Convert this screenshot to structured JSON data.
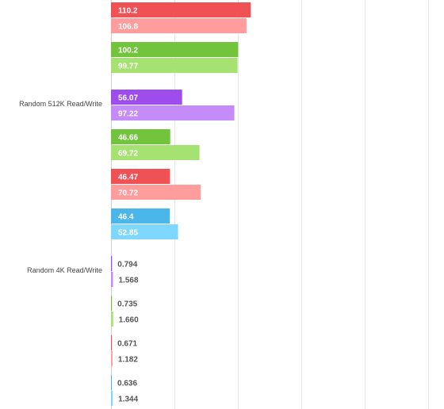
{
  "chart_data": {
    "type": "bar",
    "orientation": "horizontal",
    "grid": true,
    "xlim": [
      0,
      250
    ],
    "gridlines": [
      0,
      50,
      100,
      150,
      200,
      250
    ],
    "groups": [
      {
        "label": "",
        "bars": [
          {
            "value": 110.2,
            "label": "110.2",
            "color": "#ef5155"
          },
          {
            "value": 106.8,
            "label": "106.8",
            "color": "#ff9d9d"
          }
        ]
      },
      {
        "label": "",
        "bars": [
          {
            "value": 100.2,
            "label": "100.2",
            "color": "#72c43c"
          },
          {
            "value": 99.77,
            "label": "99.77",
            "color": "#a6e271"
          }
        ]
      },
      {
        "label": "Random 512K Read/Write",
        "bars": [
          {
            "value": 56.07,
            "label": "56.07",
            "color": "#9f4ced"
          },
          {
            "value": 97.22,
            "label": "97.22",
            "color": "#c58bf9"
          }
        ]
      },
      {
        "label": "",
        "bars": [
          {
            "value": 46.66,
            "label": "46.66",
            "color": "#72c43c"
          },
          {
            "value": 69.72,
            "label": "69.72",
            "color": "#a6e271"
          }
        ]
      },
      {
        "label": "",
        "bars": [
          {
            "value": 46.47,
            "label": "46.47",
            "color": "#ef5155"
          },
          {
            "value": 70.72,
            "label": "70.72",
            "color": "#ff9d9d"
          }
        ]
      },
      {
        "label": "",
        "bars": [
          {
            "value": 46.4,
            "label": "46.4",
            "color": "#4ab6ea"
          },
          {
            "value": 52.85,
            "label": "52.85",
            "color": "#7dd7ff"
          }
        ]
      },
      {
        "label": "Random 4K Read/Write",
        "bars": [
          {
            "value": 0.794,
            "label": "0.794",
            "color": "#9f4ced"
          },
          {
            "value": 1.568,
            "label": "1.568",
            "color": "#c58bf9"
          }
        ]
      },
      {
        "label": "",
        "bars": [
          {
            "value": 0.735,
            "label": "0.735",
            "color": "#72c43c"
          },
          {
            "value": 1.66,
            "label": "1.660",
            "color": "#a6e271"
          }
        ]
      },
      {
        "label": "",
        "bars": [
          {
            "value": 0.671,
            "label": "0.671",
            "color": "#ef5155"
          },
          {
            "value": 1.182,
            "label": "1.182",
            "color": "#ff9d9d"
          }
        ]
      },
      {
        "label": "",
        "bars": [
          {
            "value": 0.636,
            "label": "0.636",
            "color": "#4ab6ea"
          },
          {
            "value": 1.344,
            "label": "1.344",
            "color": "#7dd7ff"
          }
        ]
      }
    ]
  }
}
